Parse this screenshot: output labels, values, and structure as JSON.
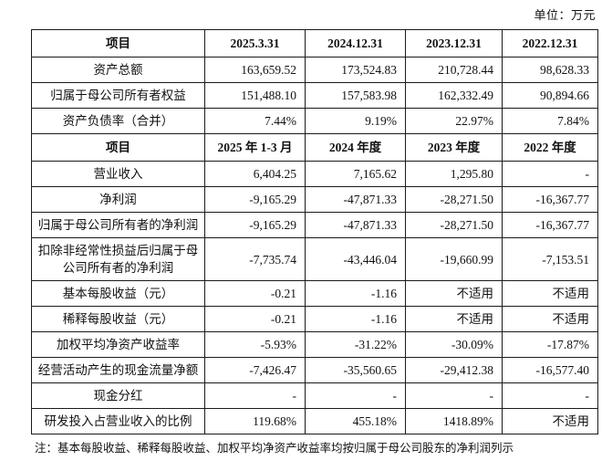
{
  "unit_label": "单位：万元",
  "note": "注：基本每股收益、稀释每股收益、加权平均净资产收益率均按归属于母公司股东的净利润列示",
  "sections": [
    {
      "header": [
        "项目",
        "2025.3.31",
        "2024.12.31",
        "2023.12.31",
        "2022.12.31"
      ],
      "rows": [
        {
          "label": "资产总额",
          "values": [
            "163,659.52",
            "173,524.83",
            "210,728.44",
            "98,628.33"
          ]
        },
        {
          "label": "归属于母公司所有者权益",
          "values": [
            "151,488.10",
            "157,583.98",
            "162,332.49",
            "90,894.66"
          ]
        },
        {
          "label": "资产负债率（合并）",
          "values": [
            "7.44%",
            "9.19%",
            "22.97%",
            "7.84%"
          ]
        }
      ]
    },
    {
      "header": [
        "项目",
        "2025 年 1-3 月",
        "2024 年度",
        "2023 年度",
        "2022 年度"
      ],
      "rows": [
        {
          "label": "营业收入",
          "values": [
            "6,404.25",
            "7,165.62",
            "1,295.80",
            "-"
          ]
        },
        {
          "label": "净利润",
          "values": [
            "-9,165.29",
            "-47,871.33",
            "-28,271.50",
            "-16,367.77"
          ]
        },
        {
          "label": "归属于母公司所有者的净利润",
          "values": [
            "-9,165.29",
            "-47,871.33",
            "-28,271.50",
            "-16,367.77"
          ]
        },
        {
          "label": "扣除非经常性损益后归属于母公司所有者的净利润",
          "values": [
            "-7,735.74",
            "-43,446.04",
            "-19,660.99",
            "-7,153.51"
          ]
        },
        {
          "label": "基本每股收益（元）",
          "values": [
            "-0.21",
            "-1.16",
            "不适用",
            "不适用"
          ]
        },
        {
          "label": "稀释每股收益（元）",
          "values": [
            "-0.21",
            "-1.16",
            "不适用",
            "不适用"
          ]
        },
        {
          "label": "加权平均净资产收益率",
          "values": [
            "-5.93%",
            "-31.22%",
            "-30.09%",
            "-17.87%"
          ]
        },
        {
          "label": "经营活动产生的现金流量净额",
          "values": [
            "-7,426.47",
            "-35,560.65",
            "-29,412.38",
            "-16,577.40"
          ]
        },
        {
          "label": "现金分红",
          "values": [
            "-",
            "-",
            "-",
            "-"
          ]
        },
        {
          "label": "研发投入占营业收入的比例",
          "values": [
            "119.68%",
            "455.18%",
            "1418.89%",
            "不适用"
          ]
        }
      ]
    }
  ]
}
